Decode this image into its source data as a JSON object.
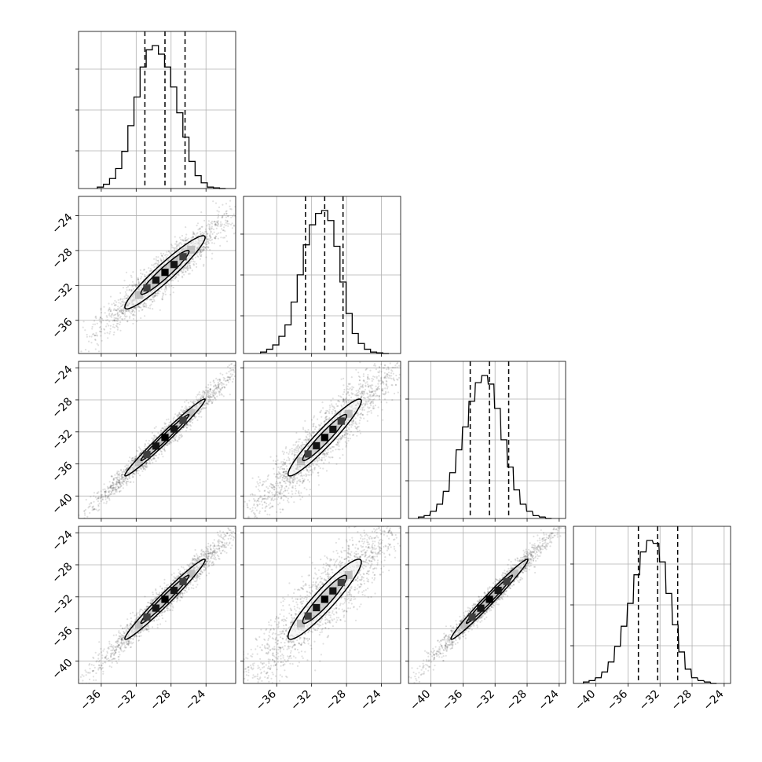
{
  "chart_data": {
    "type": "corner",
    "grid": true,
    "quantiles_shown": [
      0.16,
      0.5,
      0.84
    ],
    "parameters": [
      {
        "index": 0,
        "range": [
          -38.6,
          -20.6
        ],
        "ticks": [
          -36,
          -32,
          -28,
          -24
        ],
        "tick_labels": [
          "−36",
          "−32",
          "−28",
          "−24"
        ],
        "quantiles": [
          -31.0,
          -28.7,
          -26.4
        ],
        "histogram_bin_centers": [
          -36.1,
          -35.4,
          -34.7,
          -34.0,
          -33.3,
          -32.6,
          -31.9,
          -31.2,
          -30.5,
          -29.8,
          -29.1,
          -28.4,
          -27.7,
          -27.0,
          -26.3,
          -25.6,
          -24.9,
          -24.2,
          -23.5,
          -22.8,
          -22.1
        ],
        "histogram_relative_heights": [
          0.01,
          0.03,
          0.07,
          0.14,
          0.26,
          0.44,
          0.64,
          0.85,
          0.97,
          1.0,
          0.94,
          0.85,
          0.71,
          0.53,
          0.36,
          0.19,
          0.09,
          0.04,
          0.01,
          0.005,
          0.0
        ]
      },
      {
        "index": 1,
        "range": [
          -39.8,
          -21.8
        ],
        "ticks": [
          -36,
          -32,
          -28,
          -24
        ],
        "tick_labels": [
          "−36",
          "−32",
          "−28",
          "−24"
        ],
        "quantiles": [
          -32.7,
          -30.5,
          -28.4
        ],
        "histogram_bin_centers": [
          -37.5,
          -36.8,
          -36.1,
          -35.4,
          -34.7,
          -34.0,
          -33.3,
          -32.6,
          -31.9,
          -31.2,
          -30.5,
          -29.8,
          -29.1,
          -28.4,
          -27.7,
          -27.0,
          -26.3,
          -25.6,
          -24.9,
          -24.2,
          -23.5
        ],
        "histogram_relative_heights": [
          0.01,
          0.03,
          0.06,
          0.12,
          0.2,
          0.36,
          0.55,
          0.76,
          0.9,
          0.98,
          1.0,
          0.93,
          0.75,
          0.5,
          0.28,
          0.14,
          0.07,
          0.03,
          0.01,
          0.005,
          0.0
        ]
      },
      {
        "index": 2,
        "range": [
          -42.8,
          -23.2
        ],
        "ticks": [
          -40,
          -36,
          -32,
          -28,
          -24
        ],
        "tick_labels": [
          "−40",
          "−36",
          "−32",
          "−28",
          "−24"
        ],
        "quantiles": [
          -35.1,
          -32.7,
          -30.3
        ],
        "histogram_bin_centers": [
          -41.2,
          -40.5,
          -39.7,
          -38.9,
          -38.1,
          -37.3,
          -36.5,
          -35.7,
          -34.9,
          -34.1,
          -33.3,
          -32.5,
          -31.7,
          -30.9,
          -30.1,
          -29.3,
          -28.5,
          -27.7,
          -26.9,
          -26.1,
          -25.3
        ],
        "histogram_relative_heights": [
          0.01,
          0.02,
          0.05,
          0.1,
          0.19,
          0.32,
          0.48,
          0.64,
          0.82,
          0.95,
          1.0,
          0.94,
          0.77,
          0.55,
          0.36,
          0.2,
          0.1,
          0.05,
          0.02,
          0.01,
          0.0
        ]
      },
      {
        "index": 3,
        "range": [
          -42.8,
          -23.2
        ],
        "ticks": [
          -40,
          -36,
          -32,
          -28,
          -24
        ],
        "tick_labels": [
          "−40",
          "−36",
          "−32",
          "−28",
          "−24"
        ],
        "quantiles": [
          -34.7,
          -32.3,
          -29.8
        ],
        "histogram_bin_centers": [
          -41.2,
          -40.5,
          -39.7,
          -38.9,
          -38.1,
          -37.3,
          -36.5,
          -35.7,
          -34.9,
          -34.1,
          -33.3,
          -32.5,
          -31.7,
          -30.9,
          -30.1,
          -29.3,
          -28.5,
          -27.7,
          -26.9,
          -26.1,
          -25.3
        ],
        "histogram_relative_heights": [
          0.01,
          0.02,
          0.04,
          0.08,
          0.15,
          0.26,
          0.4,
          0.56,
          0.76,
          0.92,
          1.0,
          0.98,
          0.85,
          0.63,
          0.41,
          0.22,
          0.1,
          0.04,
          0.02,
          0.01,
          0.0
        ]
      }
    ],
    "pairs": [
      {
        "x_param": 0,
        "y_param": 1,
        "mean": [
          -28.7,
          -30.5
        ],
        "sd": [
          2.3,
          2.1
        ],
        "correlation": 0.95,
        "scatter_spread": 1.7
      },
      {
        "x_param": 0,
        "y_param": 2,
        "mean": [
          -28.7,
          -32.7
        ],
        "sd": [
          2.3,
          2.4
        ],
        "correlation": 0.985,
        "scatter_spread": 1.7
      },
      {
        "x_param": 1,
        "y_param": 2,
        "mean": [
          -30.5,
          -32.7
        ],
        "sd": [
          2.1,
          2.4
        ],
        "correlation": 0.95,
        "scatter_spread": 2.3
      },
      {
        "x_param": 0,
        "y_param": 3,
        "mean": [
          -28.7,
          -32.3
        ],
        "sd": [
          2.3,
          2.5
        ],
        "correlation": 0.98,
        "scatter_spread": 1.7
      },
      {
        "x_param": 1,
        "y_param": 3,
        "mean": [
          -30.5,
          -32.3
        ],
        "sd": [
          2.1,
          2.5
        ],
        "correlation": 0.93,
        "scatter_spread": 2.5
      },
      {
        "x_param": 2,
        "y_param": 3,
        "mean": [
          -32.7,
          -32.3
        ],
        "sd": [
          2.4,
          2.5
        ],
        "correlation": 0.985,
        "scatter_spread": 1.6
      }
    ]
  }
}
